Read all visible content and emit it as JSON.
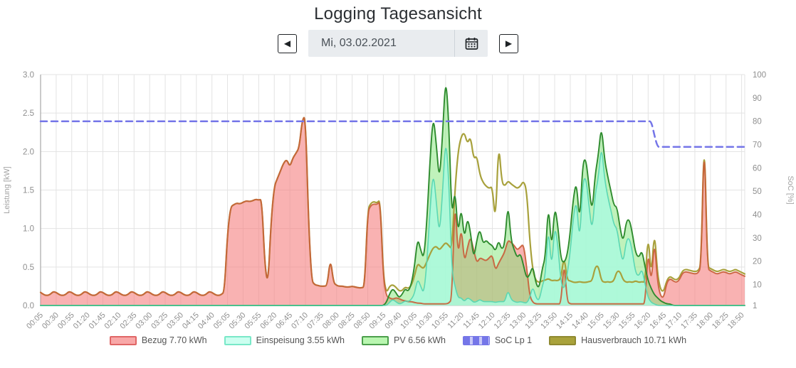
{
  "header": {
    "title": "Logging Tagesansicht",
    "prev_icon": "◀",
    "next_icon": "▶",
    "date_value": "Mi, 03.02.2021"
  },
  "chart_data": {
    "type": "area",
    "title": "Logging Tagesansicht",
    "x_start": "00:05",
    "x_step_minutes": 5,
    "x_tick_every": 5,
    "grid": true,
    "legend_position": "bottom",
    "x_tick_labels": [
      "00:05",
      "00:30",
      "00:55",
      "01:20",
      "01:45",
      "02:10",
      "02:35",
      "03:00",
      "03:25",
      "03:50",
      "04:15",
      "04:40",
      "05:05",
      "05:30",
      "05:55",
      "06:20",
      "06:45",
      "07:10",
      "07:35",
      "08:00",
      "08:25",
      "08:50",
      "09:15",
      "09:40",
      "10:05",
      "10:30",
      "10:55",
      "11:20",
      "11:45",
      "12:10",
      "12:35",
      "13:00",
      "13:25",
      "13:50",
      "14:15",
      "14:40",
      "15:05",
      "15:30",
      "15:55",
      "16:20",
      "16:45",
      "17:10",
      "17:35",
      "18:00",
      "18:25",
      "18:50"
    ],
    "y_left": {
      "label": "Leistung [kW]",
      "min": 0,
      "max": 3,
      "ticks": [
        "0.0",
        "0.5",
        "1.0",
        "1.5",
        "2.0",
        "2.5",
        "3.0"
      ]
    },
    "y_right": {
      "label": "SoC [%]",
      "min": 1,
      "max": 100,
      "ticks": [
        "1",
        "10",
        "20",
        "30",
        "40",
        "50",
        "60",
        "70",
        "80",
        "90",
        "100"
      ]
    },
    "series": [
      {
        "name": "Bezug 7.70 kWh",
        "id": "bezug",
        "type": "area",
        "axis": "left",
        "fill": "rgba(246,130,130,0.62)",
        "stroke": "#c9603a",
        "legend_fill": "#f8a8a8",
        "legend_stroke": "#e06666",
        "values": [
          0.17,
          0.14,
          0.13,
          0.14,
          0.18,
          0.17,
          0.14,
          0.13,
          0.14,
          0.18,
          0.17,
          0.14,
          0.13,
          0.14,
          0.18,
          0.17,
          0.14,
          0.13,
          0.14,
          0.18,
          0.17,
          0.14,
          0.13,
          0.14,
          0.18,
          0.17,
          0.14,
          0.13,
          0.14,
          0.18,
          0.17,
          0.14,
          0.13,
          0.14,
          0.18,
          0.17,
          0.14,
          0.13,
          0.14,
          0.18,
          0.17,
          0.14,
          0.13,
          0.14,
          0.18,
          0.17,
          0.14,
          0.13,
          0.14,
          0.18,
          0.17,
          0.14,
          0.13,
          0.14,
          0.18,
          0.17,
          0.14,
          0.13,
          0.14,
          0.18,
          0.95,
          1.28,
          1.31,
          1.33,
          1.32,
          1.34,
          1.36,
          1.35,
          1.36,
          1.38,
          1.37,
          1.38,
          0.5,
          0.27,
          1.1,
          1.55,
          1.65,
          1.75,
          1.85,
          1.9,
          1.8,
          1.92,
          1.98,
          2.05,
          2.42,
          2.46,
          1.1,
          0.32,
          0.27,
          0.26,
          0.25,
          0.25,
          0.26,
          0.62,
          0.3,
          0.26,
          0.25,
          0.25,
          0.24,
          0.24,
          0.25,
          0.24,
          0.23,
          0.23,
          0.24,
          1.22,
          1.3,
          1.32,
          1.31,
          1.36,
          0.35,
          0.12,
          0.1,
          0.08,
          0.1,
          0.09,
          0.07,
          0.06,
          0.05,
          0.05,
          0.04,
          0.03,
          0.03,
          0.02,
          0.02,
          0.02,
          0.02,
          0.02,
          0.02,
          0.02,
          0.02,
          0.03,
          0.08,
          1.45,
          0.6,
          1.05,
          0.55,
          0.75,
          0.9,
          0.72,
          0.55,
          0.62,
          0.6,
          0.58,
          0.62,
          0.66,
          0.45,
          0.55,
          0.62,
          0.7,
          0.85,
          0.82,
          0.78,
          0.72,
          0.76,
          0.8,
          0.5,
          0.12,
          0.04,
          0.02,
          0.02,
          0.02,
          0.02,
          0.02,
          0.02,
          0.02,
          0.02,
          0.02,
          0.6,
          0.05,
          0.02,
          0.02,
          0.02,
          0.02,
          0.02,
          0.02,
          0.02,
          0.02,
          0.02,
          0.02,
          0.02,
          0.02,
          0.02,
          0.02,
          0.02,
          0.02,
          0.02,
          0.02,
          0.02,
          0.02,
          0.02,
          0.02,
          0.02,
          0.02,
          0.02,
          0.75,
          0.25,
          0.88,
          0.3,
          0.12,
          0.1,
          0.3,
          0.35,
          0.32,
          0.3,
          0.33,
          0.42,
          0.44,
          0.43,
          0.42,
          0.41,
          0.42,
          0.5,
          2.32,
          0.48,
          0.45,
          0.43,
          0.41,
          0.42,
          0.44,
          0.43,
          0.41,
          0.42,
          0.44,
          0.42,
          0.4,
          0.38
        ]
      },
      {
        "name": "Einspeisung 3.55 kWh",
        "id": "einspeisung",
        "type": "area",
        "axis": "left",
        "fill": "rgba(170,250,222,0.85)",
        "stroke": "#56d6b2",
        "legend_fill": "#ccfff0",
        "legend_stroke": "#79e8c8",
        "values": [
          0,
          0,
          0,
          0,
          0,
          0,
          0,
          0,
          0,
          0,
          0,
          0,
          0,
          0,
          0,
          0,
          0,
          0,
          0,
          0,
          0,
          0,
          0,
          0,
          0,
          0,
          0,
          0,
          0,
          0,
          0,
          0,
          0,
          0,
          0,
          0,
          0,
          0,
          0,
          0,
          0,
          0,
          0,
          0,
          0,
          0,
          0,
          0,
          0,
          0,
          0,
          0,
          0,
          0,
          0,
          0,
          0,
          0,
          0,
          0,
          0,
          0,
          0,
          0,
          0,
          0,
          0,
          0,
          0,
          0,
          0,
          0,
          0,
          0,
          0,
          0,
          0,
          0,
          0,
          0,
          0,
          0,
          0,
          0,
          0,
          0,
          0,
          0,
          0,
          0,
          0,
          0,
          0,
          0,
          0,
          0,
          0,
          0,
          0,
          0,
          0,
          0,
          0,
          0,
          0,
          0,
          0,
          0,
          0,
          0,
          0,
          0,
          0.04,
          0.08,
          0.05,
          0.02,
          0.03,
          0.06,
          0.05,
          0.08,
          0.15,
          0.35,
          0.25,
          0.15,
          0.55,
          1.25,
          1.75,
          1.35,
          0.9,
          1.45,
          2.2,
          1.65,
          0.45,
          0.25,
          0.1,
          0.1,
          0.05,
          0.1,
          0.08,
          0.04,
          0.05,
          0.08,
          0.05,
          0.05,
          0.05,
          0.05,
          0.04,
          0.05,
          0.05,
          0.05,
          0.2,
          0.08,
          0.05,
          0.04,
          0.05,
          0.04,
          0.03,
          0.1,
          0.25,
          0.1,
          0.06,
          0.25,
          0.38,
          1.05,
          0.45,
          1.05,
          0.8,
          0.3,
          0.2,
          0.4,
          0.7,
          1.15,
          1.38,
          0.8,
          1.6,
          1.68,
          1.3,
          0.95,
          1.45,
          1.65,
          2.1,
          1.65,
          1.42,
          1.25,
          1.05,
          1.0,
          0.72,
          0.55,
          0.85,
          0.88,
          0.68,
          0.42,
          0.38,
          0.48,
          0.28,
          0.1,
          0.04,
          0.02,
          0,
          0,
          0,
          0,
          0,
          0,
          0,
          0,
          0,
          0,
          0,
          0,
          0,
          0,
          0,
          0,
          0,
          0,
          0,
          0,
          0,
          0,
          0,
          0,
          0,
          0,
          0,
          0,
          0
        ]
      },
      {
        "name": "PV 6.56 kWh",
        "id": "pv",
        "type": "area",
        "axis": "left",
        "fill": "rgba(130,230,120,0.5)",
        "stroke": "#2e8b2e",
        "legend_fill": "#b9f6b0",
        "legend_stroke": "#4c9f4c",
        "values": [
          0,
          0,
          0,
          0,
          0,
          0,
          0,
          0,
          0,
          0,
          0,
          0,
          0,
          0,
          0,
          0,
          0,
          0,
          0,
          0,
          0,
          0,
          0,
          0,
          0,
          0,
          0,
          0,
          0,
          0,
          0,
          0,
          0,
          0,
          0,
          0,
          0,
          0,
          0,
          0,
          0,
          0,
          0,
          0,
          0,
          0,
          0,
          0,
          0,
          0,
          0,
          0,
          0,
          0,
          0,
          0,
          0,
          0,
          0,
          0,
          0,
          0,
          0,
          0,
          0,
          0,
          0,
          0,
          0,
          0,
          0,
          0,
          0,
          0,
          0,
          0,
          0,
          0,
          0,
          0,
          0,
          0,
          0,
          0,
          0,
          0,
          0,
          0,
          0,
          0,
          0,
          0,
          0,
          0,
          0,
          0,
          0,
          0,
          0,
          0,
          0,
          0,
          0,
          0,
          0,
          0,
          0,
          0,
          0,
          0,
          0,
          0.04,
          0.15,
          0.22,
          0.17,
          0.1,
          0.14,
          0.22,
          0.18,
          0.28,
          0.5,
          0.88,
          0.72,
          0.6,
          1.1,
          1.9,
          2.48,
          2.1,
          1.6,
          2.2,
          3.0,
          2.4,
          1.1,
          1.55,
          0.9,
          1.3,
          0.85,
          1.15,
          0.95,
          0.6,
          0.85,
          1.0,
          0.8,
          0.85,
          0.8,
          0.78,
          0.7,
          0.85,
          0.72,
          0.8,
          1.35,
          0.85,
          0.72,
          0.62,
          0.68,
          0.52,
          0.35,
          0.4,
          0.52,
          0.28,
          0.22,
          0.48,
          0.62,
          1.35,
          0.7,
          1.3,
          1.05,
          0.6,
          0.55,
          0.65,
          0.95,
          1.4,
          1.62,
          1.05,
          1.85,
          1.92,
          1.55,
          1.2,
          1.7,
          1.95,
          2.35,
          1.9,
          1.68,
          1.5,
          1.3,
          1.28,
          1.0,
          0.82,
          1.1,
          1.12,
          0.92,
          0.68,
          0.62,
          0.72,
          0.5,
          0.32,
          0.22,
          0.14,
          0.1,
          0.06,
          0.04,
          0.02,
          0.02,
          0,
          0,
          0,
          0,
          0,
          0,
          0,
          0,
          0,
          0,
          0,
          0,
          0,
          0,
          0,
          0,
          0,
          0,
          0,
          0,
          0,
          0,
          0,
          0
        ]
      },
      {
        "name": "SoC Lp 1",
        "id": "soc",
        "type": "line",
        "axis": "right",
        "dash": true,
        "fill": "#c9c9f8",
        "stroke": "#7576e8",
        "values": [
          80,
          80,
          80,
          80,
          80,
          80,
          80,
          80,
          80,
          80,
          80,
          80,
          80,
          80,
          80,
          80,
          80,
          80,
          80,
          80,
          80,
          80,
          80,
          80,
          80,
          80,
          80,
          80,
          80,
          80,
          80,
          80,
          80,
          80,
          80,
          80,
          80,
          80,
          80,
          80,
          80,
          80,
          80,
          80,
          80,
          80,
          80,
          80,
          80,
          80,
          80,
          80,
          80,
          80,
          80,
          80,
          80,
          80,
          80,
          80,
          80,
          80,
          80,
          80,
          80,
          80,
          80,
          80,
          80,
          80,
          80,
          80,
          80,
          80,
          80,
          80,
          80,
          80,
          80,
          80,
          80,
          80,
          80,
          80,
          80,
          80,
          80,
          80,
          80,
          80,
          80,
          80,
          80,
          80,
          80,
          80,
          80,
          80,
          80,
          80,
          80,
          80,
          80,
          80,
          80,
          80,
          80,
          80,
          80,
          80,
          80,
          80,
          80,
          80,
          80,
          80,
          80,
          80,
          80,
          80,
          80,
          80,
          80,
          80,
          80,
          80,
          80,
          80,
          80,
          80,
          80,
          80,
          80,
          80,
          80,
          80,
          80,
          80,
          80,
          80,
          80,
          80,
          80,
          80,
          80,
          80,
          80,
          80,
          80,
          80,
          80,
          80,
          80,
          80,
          80,
          80,
          80,
          80,
          80,
          80,
          80,
          80,
          80,
          80,
          80,
          80,
          80,
          80,
          80,
          80,
          80,
          80,
          80,
          80,
          80,
          80,
          80,
          80,
          80,
          80,
          80,
          80,
          80,
          80,
          80,
          80,
          80,
          80,
          80,
          80,
          80,
          80,
          80,
          80,
          80,
          80,
          80,
          74,
          69,
          69,
          69,
          69,
          69,
          69,
          69,
          69,
          69,
          69,
          69,
          69,
          69,
          69,
          69,
          69,
          69,
          69,
          69,
          69,
          69,
          69,
          69,
          69,
          69,
          69,
          69,
          69,
          69
        ]
      },
      {
        "name": "Hausverbrauch 10.71 kWh",
        "id": "hausverbrauch",
        "type": "line",
        "axis": "left",
        "fill": "#a9a23b",
        "stroke": "#a8a13c",
        "legend_fill": "#a9a23b",
        "legend_stroke": "#8f8930",
        "values": [
          0.17,
          0.14,
          0.13,
          0.14,
          0.18,
          0.17,
          0.14,
          0.13,
          0.14,
          0.18,
          0.17,
          0.14,
          0.13,
          0.14,
          0.18,
          0.17,
          0.14,
          0.13,
          0.14,
          0.18,
          0.17,
          0.14,
          0.13,
          0.14,
          0.18,
          0.17,
          0.14,
          0.13,
          0.14,
          0.18,
          0.17,
          0.14,
          0.13,
          0.14,
          0.18,
          0.17,
          0.14,
          0.13,
          0.14,
          0.18,
          0.17,
          0.14,
          0.13,
          0.14,
          0.18,
          0.17,
          0.14,
          0.13,
          0.14,
          0.18,
          0.17,
          0.14,
          0.13,
          0.14,
          0.18,
          0.17,
          0.14,
          0.13,
          0.14,
          0.18,
          0.95,
          1.28,
          1.31,
          1.33,
          1.32,
          1.34,
          1.36,
          1.35,
          1.36,
          1.38,
          1.37,
          1.38,
          0.5,
          0.27,
          1.1,
          1.55,
          1.65,
          1.75,
          1.85,
          1.9,
          1.8,
          1.92,
          1.98,
          2.05,
          2.42,
          2.46,
          1.1,
          0.32,
          0.27,
          0.26,
          0.25,
          0.25,
          0.26,
          0.62,
          0.3,
          0.26,
          0.25,
          0.25,
          0.24,
          0.24,
          0.25,
          0.24,
          0.23,
          0.23,
          0.24,
          1.25,
          1.33,
          1.35,
          1.33,
          1.38,
          0.38,
          0.16,
          0.25,
          0.27,
          0.24,
          0.19,
          0.19,
          0.24,
          0.22,
          0.26,
          0.38,
          0.55,
          0.5,
          0.48,
          0.57,
          0.67,
          0.75,
          0.77,
          0.72,
          0.77,
          0.82,
          0.78,
          0.73,
          1.5,
          2.0,
          2.2,
          2.25,
          2.1,
          2.2,
          1.9,
          1.95,
          1.7,
          1.6,
          1.55,
          1.52,
          1.55,
          1.05,
          2.15,
          1.6,
          1.55,
          1.62,
          1.58,
          1.55,
          1.52,
          1.55,
          1.62,
          1.5,
          0.85,
          0.45,
          0.32,
          0.3,
          0.32,
          0.33,
          0.35,
          0.32,
          0.33,
          0.32,
          0.35,
          0.65,
          0.33,
          0.32,
          0.3,
          0.3,
          0.31,
          0.3,
          0.3,
          0.31,
          0.32,
          0.5,
          0.52,
          0.32,
          0.3,
          0.31,
          0.3,
          0.32,
          0.45,
          0.44,
          0.33,
          0.3,
          0.31,
          0.3,
          0.32,
          0.3,
          0.31,
          0.3,
          0.95,
          0.35,
          1.0,
          0.4,
          0.2,
          0.18,
          0.33,
          0.38,
          0.35,
          0.33,
          0.36,
          0.45,
          0.47,
          0.46,
          0.45,
          0.44,
          0.45,
          0.52,
          2.35,
          0.5,
          0.48,
          0.46,
          0.44,
          0.45,
          0.47,
          0.46,
          0.44,
          0.45,
          0.47,
          0.45,
          0.43,
          0.41
        ]
      }
    ]
  }
}
